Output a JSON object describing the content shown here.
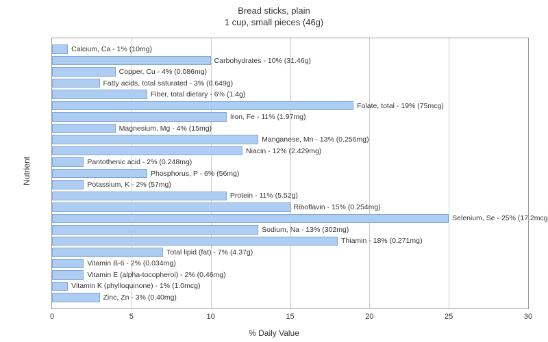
{
  "chart": {
    "type": "bar-horizontal",
    "title_line1": "Bread sticks, plain",
    "title_line2": "1 cup, small pieces (46g)",
    "x_axis_label": "% Daily Value",
    "y_axis_label": "Nutrient",
    "xlim": [
      0,
      30
    ],
    "x_ticks": [
      0,
      5,
      10,
      15,
      20,
      25,
      30
    ],
    "background_color": "#ffffff",
    "plot_border_color": "#999999",
    "grid_color": "#cccccc",
    "bar_fill_color": "#aecdf2",
    "bar_border_color": "#7fa8d9",
    "label_color": "#333333",
    "title_fontsize": 13,
    "axis_label_fontsize": 12,
    "tick_fontsize": 11,
    "bar_label_fontsize": 10.5,
    "nutrients": [
      {
        "name": "Calcium, Ca",
        "pct": 1,
        "amount": "10mg"
      },
      {
        "name": "Carbohydrates",
        "pct": 10,
        "amount": "31.46g"
      },
      {
        "name": "Copper, Cu",
        "pct": 4,
        "amount": "0.086mg"
      },
      {
        "name": "Fatty acids, total saturated",
        "pct": 3,
        "amount": "0.649g"
      },
      {
        "name": "Fiber, total dietary",
        "pct": 6,
        "amount": "1.4g"
      },
      {
        "name": "Folate, total",
        "pct": 19,
        "amount": "75mcg"
      },
      {
        "name": "Iron, Fe",
        "pct": 11,
        "amount": "1.97mg"
      },
      {
        "name": "Magnesium, Mg",
        "pct": 4,
        "amount": "15mg"
      },
      {
        "name": "Manganese, Mn",
        "pct": 13,
        "amount": "0.256mg"
      },
      {
        "name": "Niacin",
        "pct": 12,
        "amount": "2.429mg"
      },
      {
        "name": "Pantothenic acid",
        "pct": 2,
        "amount": "0.248mg"
      },
      {
        "name": "Phosphorus, P",
        "pct": 6,
        "amount": "56mg"
      },
      {
        "name": "Potassium, K",
        "pct": 2,
        "amount": "57mg"
      },
      {
        "name": "Protein",
        "pct": 11,
        "amount": "5.52g"
      },
      {
        "name": "Riboflavin",
        "pct": 15,
        "amount": "0.254mg"
      },
      {
        "name": "Selenium, Se",
        "pct": 25,
        "amount": "17.2mcg"
      },
      {
        "name": "Sodium, Na",
        "pct": 13,
        "amount": "302mg"
      },
      {
        "name": "Thiamin",
        "pct": 18,
        "amount": "0.271mg"
      },
      {
        "name": "Total lipid (fat)",
        "pct": 7,
        "amount": "4.37g"
      },
      {
        "name": "Vitamin B-6",
        "pct": 2,
        "amount": "0.034mg"
      },
      {
        "name": "Vitamin E (alpha-tocopherol)",
        "pct": 2,
        "amount": "0.46mg"
      },
      {
        "name": "Vitamin K (phylloquinone)",
        "pct": 1,
        "amount": "1.0mcg"
      },
      {
        "name": "Zinc, Zn",
        "pct": 3,
        "amount": "0.40mg"
      }
    ]
  }
}
